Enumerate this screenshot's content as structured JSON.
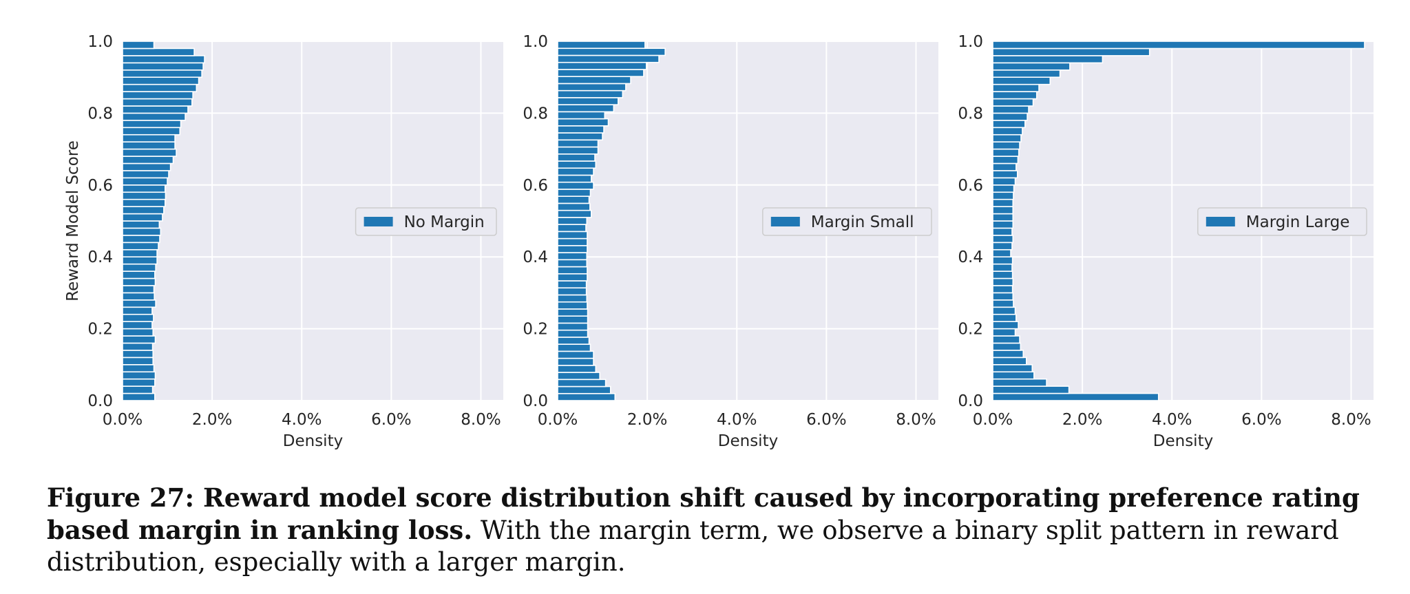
{
  "chart_data": [
    {
      "type": "bar",
      "orientation": "horizontal",
      "ylabel": "Reward Model Score",
      "xlabel": "Density",
      "xlim": [
        0,
        0.085
      ],
      "ylim": [
        0,
        1.0
      ],
      "xticks": [
        "0.0%",
        "2.0%",
        "4.0%",
        "6.0%",
        "8.0%"
      ],
      "yticks": [
        "0.0",
        "0.2",
        "0.4",
        "0.6",
        "0.8",
        "1.0"
      ],
      "grid": true,
      "legend_position": "right",
      "bar_color": "#1f77b4",
      "series": [
        {
          "name": "No Margin",
          "values": [
            0.0072,
            0.0067,
            0.0072,
            0.0073,
            0.007,
            0.0068,
            0.0068,
            0.0067,
            0.0073,
            0.0068,
            0.0066,
            0.0069,
            0.0066,
            0.0074,
            0.0071,
            0.007,
            0.0073,
            0.0072,
            0.0074,
            0.0077,
            0.0077,
            0.008,
            0.0083,
            0.0085,
            0.0082,
            0.0089,
            0.0092,
            0.0095,
            0.0096,
            0.0095,
            0.01,
            0.0103,
            0.0107,
            0.0113,
            0.012,
            0.0117,
            0.0117,
            0.0128,
            0.013,
            0.014,
            0.0146,
            0.0155,
            0.0157,
            0.0165,
            0.017,
            0.0177,
            0.018,
            0.0183,
            0.016,
            0.007
          ]
        }
      ]
    },
    {
      "type": "bar",
      "orientation": "horizontal",
      "ylabel": "",
      "xlabel": "Density",
      "xlim": [
        0,
        0.085
      ],
      "ylim": [
        0,
        1.0
      ],
      "xticks": [
        "0.0%",
        "2.0%",
        "4.0%",
        "6.0%",
        "8.0%"
      ],
      "yticks": [
        "0.0",
        "0.2",
        "0.4",
        "0.6",
        "0.8",
        "1.0"
      ],
      "grid": true,
      "legend_position": "right",
      "bar_color": "#1f77b4",
      "series": [
        {
          "name": "Margin Small",
          "values": [
            0.0128,
            0.0118,
            0.0107,
            0.0094,
            0.0085,
            0.008,
            0.008,
            0.0073,
            0.007,
            0.0067,
            0.0067,
            0.0067,
            0.0067,
            0.0066,
            0.0065,
            0.0064,
            0.0064,
            0.0066,
            0.0066,
            0.0065,
            0.0065,
            0.0066,
            0.0066,
            0.0066,
            0.0063,
            0.0065,
            0.0075,
            0.0072,
            0.007,
            0.0073,
            0.008,
            0.0075,
            0.008,
            0.0085,
            0.0083,
            0.009,
            0.009,
            0.01,
            0.0103,
            0.0113,
            0.0105,
            0.0125,
            0.0135,
            0.0145,
            0.0152,
            0.0163,
            0.0192,
            0.0198,
            0.0226,
            0.024,
            0.0195
          ]
        }
      ]
    },
    {
      "type": "bar",
      "orientation": "horizontal",
      "ylabel": "",
      "xlabel": "Density",
      "xlim": [
        0,
        0.085
      ],
      "ylim": [
        0,
        1.0
      ],
      "xticks": [
        "0.0%",
        "2.0%",
        "4.0%",
        "6.0%",
        "8.0%"
      ],
      "yticks": [
        "0.0",
        "0.2",
        "0.4",
        "0.6",
        "0.8",
        "1.0"
      ],
      "grid": true,
      "legend_position": "right",
      "bar_color": "#1f77b4",
      "series": [
        {
          "name": "Margin Large",
          "values": [
            0.037,
            0.017,
            0.012,
            0.0092,
            0.0088,
            0.0075,
            0.0068,
            0.0062,
            0.006,
            0.005,
            0.0057,
            0.0052,
            0.005,
            0.0046,
            0.0045,
            0.0044,
            0.0045,
            0.0044,
            0.0043,
            0.0044,
            0.004,
            0.0043,
            0.0045,
            0.0043,
            0.0045,
            0.0045,
            0.0045,
            0.0045,
            0.0046,
            0.0047,
            0.005,
            0.0055,
            0.0052,
            0.0056,
            0.0058,
            0.006,
            0.0063,
            0.0066,
            0.0072,
            0.0077,
            0.008,
            0.009,
            0.0098,
            0.0103,
            0.0128,
            0.015,
            0.0172,
            0.0245,
            0.035,
            0.083
          ]
        }
      ]
    }
  ],
  "caption": {
    "bold": "Figure 27: Reward model score distribution shift caused by incorporating preference rating based margin in ranking loss.",
    "text": " With the margin term, we observe a binary split pattern in reward distribution, especially with a larger margin."
  }
}
